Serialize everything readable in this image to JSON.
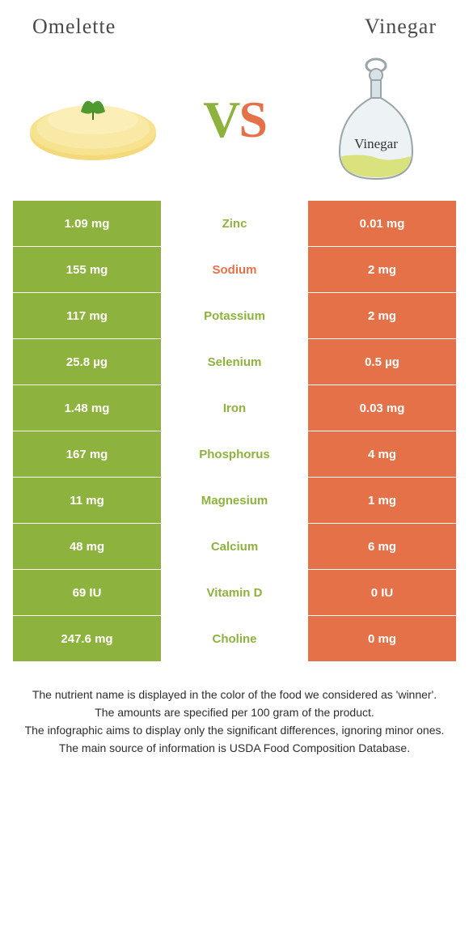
{
  "header": {
    "left_title": "Omelette",
    "right_title": "Vinegar"
  },
  "vs": {
    "v": "V",
    "s": "S"
  },
  "colors": {
    "left_bg": "#8eb23e",
    "right_bg": "#e57149",
    "left_text": "#8eb23e",
    "right_text": "#e57149",
    "vs_v": "#8eb23e",
    "vs_s": "#e57149"
  },
  "images": {
    "left_alt": "Omelette",
    "right_alt": "Vinegar",
    "right_label": "Vinegar"
  },
  "rows": [
    {
      "left": "1.09 mg",
      "mid": "Zinc",
      "right": "0.01 mg",
      "winner": "left"
    },
    {
      "left": "155 mg",
      "mid": "Sodium",
      "right": "2 mg",
      "winner": "right"
    },
    {
      "left": "117 mg",
      "mid": "Potassium",
      "right": "2 mg",
      "winner": "left"
    },
    {
      "left": "25.8 µg",
      "mid": "Selenium",
      "right": "0.5 µg",
      "winner": "left"
    },
    {
      "left": "1.48 mg",
      "mid": "Iron",
      "right": "0.03 mg",
      "winner": "left"
    },
    {
      "left": "167 mg",
      "mid": "Phosphorus",
      "right": "4 mg",
      "winner": "left"
    },
    {
      "left": "11 mg",
      "mid": "Magnesium",
      "right": "1 mg",
      "winner": "left"
    },
    {
      "left": "48 mg",
      "mid": "Calcium",
      "right": "6 mg",
      "winner": "left"
    },
    {
      "left": "69 IU",
      "mid": "Vitamin D",
      "right": "0 IU",
      "winner": "left"
    },
    {
      "left": "247.6 mg",
      "mid": "Choline",
      "right": "0 mg",
      "winner": "left"
    }
  ],
  "footer": {
    "lines": [
      "The nutrient name is displayed in the color of the food we considered as 'winner'.",
      "The amounts are specified per 100 gram of the product.",
      "The infographic aims to display only the significant differences, ignoring minor ones.",
      "The main source of information is USDA Food Composition Database."
    ]
  }
}
